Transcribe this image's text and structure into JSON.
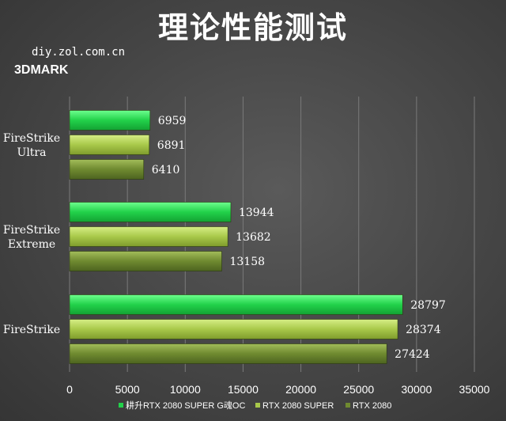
{
  "header": {
    "title": "理论性能测试",
    "site": "diy.zol.com.cn",
    "benchmark": "3DMARK"
  },
  "colors": {
    "series1": "#22d14a",
    "series2": "#a8c84a",
    "series3": "#6f8a30",
    "grid": "#7a7a7a"
  },
  "chart_data": {
    "type": "bar",
    "orientation": "horizontal",
    "categories": [
      "FireStrike\nUltra",
      "FireStrike\nExtreme",
      "FireStrike"
    ],
    "series": [
      {
        "name": "耕升RTX 2080 SUPER G魂OC",
        "values": [
          6959,
          13944,
          28797
        ]
      },
      {
        "name": "RTX 2080 SUPER",
        "values": [
          6891,
          13682,
          28374
        ]
      },
      {
        "name": "RTX 2080",
        "values": [
          6410,
          13158,
          27424
        ]
      }
    ],
    "xlim": [
      0,
      35000
    ],
    "xticks": [
      0,
      5000,
      10000,
      15000,
      20000,
      25000,
      30000,
      35000
    ],
    "grid": true,
    "legend_position": "bottom"
  }
}
